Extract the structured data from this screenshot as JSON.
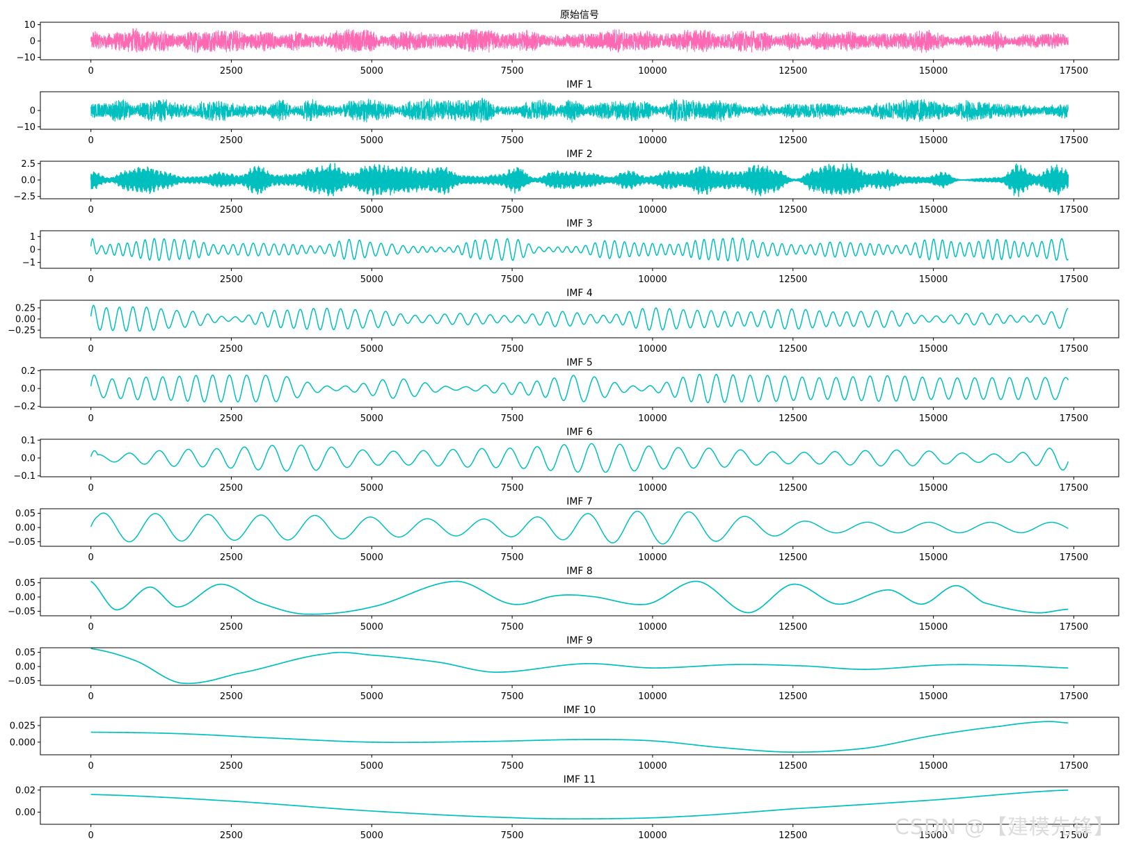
{
  "chart_data": [
    {
      "type": "line",
      "title": "原始信号",
      "color": "#ff69b4",
      "yticks": [
        "10",
        "0",
        "−10"
      ],
      "ylim": [
        -11.5,
        11.5
      ],
      "yvals": [
        10,
        0,
        -10
      ],
      "xlim": [
        -900,
        18300
      ],
      "xticks": [
        0,
        2500,
        5000,
        7500,
        10000,
        12500,
        15000,
        17500
      ],
      "signal": {
        "n": 17400,
        "kind": "noise",
        "amp": 6.6
      }
    },
    {
      "type": "line",
      "title": "IMF 1",
      "color": "#00bfbf",
      "yticks": [
        "0",
        "−10"
      ],
      "ylim": [
        -11.5,
        11.5
      ],
      "yvals": [
        0,
        -10
      ],
      "xlim": [
        -900,
        18300
      ],
      "xticks": [
        0,
        2500,
        5000,
        7500,
        10000,
        12500,
        15000,
        17500
      ],
      "signal": {
        "n": 17400,
        "kind": "noise",
        "amp": 6.4
      }
    },
    {
      "type": "line",
      "title": "IMF 2",
      "color": "#00bfbf",
      "yticks": [
        "2.5",
        "0.0",
        "−2.5"
      ],
      "ylim": [
        -2.85,
        2.85
      ],
      "yvals": [
        2.5,
        0,
        -2.5
      ],
      "xlim": [
        -900,
        18300
      ],
      "xticks": [
        0,
        2500,
        5000,
        7500,
        10000,
        12500,
        15000,
        17500
      ],
      "signal": {
        "n": 17400,
        "kind": "burst",
        "amp": 1.2
      }
    },
    {
      "type": "line",
      "title": "IMF 3",
      "color": "#00bfbf",
      "yticks": [
        "1",
        "0",
        "−1"
      ],
      "ylim": [
        -1.45,
        1.45
      ],
      "yvals": [
        1,
        0,
        -1
      ],
      "xlim": [
        -900,
        18300
      ],
      "xticks": [
        0,
        2500,
        5000,
        7500,
        10000,
        12500,
        15000,
        17500
      ],
      "signal": {
        "n": 17400,
        "kind": "osc",
        "period": 180,
        "amp": 0.45
      }
    },
    {
      "type": "line",
      "title": "IMF 4",
      "color": "#00bfbf",
      "yticks": [
        "0.25",
        "0.00",
        "−0.25"
      ],
      "ylim": [
        -0.42,
        0.42
      ],
      "yvals": [
        0.25,
        0,
        -0.25
      ],
      "xlim": [
        -900,
        18300
      ],
      "xticks": [
        0,
        2500,
        5000,
        7500,
        10000,
        12500,
        15000,
        17500
      ],
      "signal": {
        "n": 17400,
        "kind": "osc",
        "period": 260,
        "amp": 0.15
      }
    },
    {
      "type": "line",
      "title": "IMF 5",
      "color": "#00bfbf",
      "yticks": [
        "0.2",
        "0.0",
        "−0.2"
      ],
      "ylim": [
        -0.21,
        0.21
      ],
      "yvals": [
        0.2,
        0,
        -0.2
      ],
      "xlim": [
        -900,
        18300
      ],
      "xticks": [
        0,
        2500,
        5000,
        7500,
        10000,
        12500,
        15000,
        17500
      ],
      "signal": {
        "n": 17400,
        "kind": "osc",
        "period": 340,
        "amp": 0.09
      }
    },
    {
      "type": "line",
      "title": "IMF 6",
      "color": "#00bfbf",
      "yticks": [
        "0.1",
        "0.0",
        "−0.1"
      ],
      "ylim": [
        -0.105,
        0.105
      ],
      "yvals": [
        0.1,
        0,
        -0.1
      ],
      "xlim": [
        -900,
        18300
      ],
      "xticks": [
        0,
        2500,
        5000,
        7500,
        10000,
        12500,
        15000,
        17500
      ],
      "signal": {
        "n": 17400,
        "kind": "osc",
        "period": 560,
        "amp": 0.045
      }
    },
    {
      "type": "line",
      "title": "IMF 7",
      "color": "#00bfbf",
      "yticks": [
        "0.05",
        "0.00",
        "−0.05"
      ],
      "ylim": [
        -0.066,
        0.066
      ],
      "yvals": [
        0.05,
        0,
        -0.05
      ],
      "xlim": [
        -900,
        18300
      ],
      "xticks": [
        0,
        2500,
        5000,
        7500,
        10000,
        12500,
        15000,
        17500
      ],
      "signal": {
        "n": 17400,
        "kind": "osc",
        "period": 1050,
        "amp": 0.03
      }
    },
    {
      "type": "line",
      "title": "IMF 8",
      "color": "#00bfbf",
      "yticks": [
        "0.05",
        "0.00",
        "−0.05"
      ],
      "ylim": [
        -0.066,
        0.066
      ],
      "yvals": [
        0.05,
        0,
        -0.05
      ],
      "xlim": [
        -900,
        18300
      ],
      "xticks": [
        0,
        2500,
        5000,
        7500,
        10000,
        12500,
        15000,
        17500
      ],
      "points": [
        [
          0,
          0.055
        ],
        [
          450,
          -0.045
        ],
        [
          1050,
          0.035
        ],
        [
          1550,
          -0.035
        ],
        [
          2300,
          0.045
        ],
        [
          3000,
          -0.02
        ],
        [
          3800,
          -0.06
        ],
        [
          5000,
          -0.035
        ],
        [
          6500,
          0.055
        ],
        [
          7500,
          -0.025
        ],
        [
          8300,
          0.005
        ],
        [
          8900,
          0.002
        ],
        [
          9900,
          -0.025
        ],
        [
          10800,
          0.055
        ],
        [
          11700,
          -0.055
        ],
        [
          12500,
          0.045
        ],
        [
          13300,
          -0.025
        ],
        [
          14200,
          0.025
        ],
        [
          14800,
          -0.025
        ],
        [
          15400,
          0.04
        ],
        [
          15900,
          -0.02
        ],
        [
          16800,
          -0.055
        ],
        [
          17400,
          -0.043
        ]
      ]
    },
    {
      "type": "line",
      "title": "IMF 9",
      "color": "#00bfbf",
      "yticks": [
        "0.05",
        "0.00",
        "−0.05"
      ],
      "ylim": [
        -0.066,
        0.066
      ],
      "yvals": [
        0.05,
        0,
        -0.05
      ],
      "xlim": [
        -900,
        18300
      ],
      "xticks": [
        0,
        2500,
        5000,
        7500,
        10000,
        12500,
        15000,
        17500
      ],
      "points": [
        [
          0,
          0.063
        ],
        [
          800,
          0.02
        ],
        [
          1600,
          -0.058
        ],
        [
          2600,
          -0.025
        ],
        [
          4200,
          0.045
        ],
        [
          5000,
          0.04
        ],
        [
          6200,
          0.015
        ],
        [
          7200,
          -0.02
        ],
        [
          8800,
          0.01
        ],
        [
          10000,
          -0.005
        ],
        [
          11500,
          0.007
        ],
        [
          12700,
          0.002
        ],
        [
          13800,
          -0.01
        ],
        [
          15200,
          0.006
        ],
        [
          16500,
          0.003
        ],
        [
          17400,
          -0.005
        ]
      ]
    },
    {
      "type": "line",
      "title": "IMF 10",
      "color": "#00bfbf",
      "yticks": [
        "0.025",
        "0.000"
      ],
      "ylim": [
        -0.019,
        0.0375
      ],
      "yvals": [
        0.025,
        0
      ],
      "xlim": [
        -900,
        18300
      ],
      "xticks": [
        0,
        2500,
        5000,
        7500,
        10000,
        12500,
        15000,
        17500
      ],
      "points": [
        [
          0,
          0.015
        ],
        [
          1500,
          0.013
        ],
        [
          3000,
          0.007
        ],
        [
          5000,
          0.0
        ],
        [
          7000,
          0.001
        ],
        [
          8800,
          0.004
        ],
        [
          10000,
          0.002
        ],
        [
          11200,
          -0.008
        ],
        [
          12500,
          -0.015
        ],
        [
          13800,
          -0.009
        ],
        [
          15000,
          0.01
        ],
        [
          16200,
          0.024
        ],
        [
          17000,
          0.031
        ],
        [
          17400,
          0.029
        ]
      ]
    },
    {
      "type": "line",
      "title": "IMF 11",
      "color": "#00bfbf",
      "yticks": [
        "0.02",
        "0.00"
      ],
      "ylim": [
        -0.011,
        0.023
      ],
      "yvals": [
        0.02,
        0
      ],
      "xlim": [
        -900,
        18300
      ],
      "xticks": [
        0,
        2500,
        5000,
        7500,
        10000,
        12500,
        15000,
        17500
      ],
      "points": [
        [
          0,
          0.016
        ],
        [
          2500,
          0.01
        ],
        [
          5000,
          0.001
        ],
        [
          7500,
          -0.005
        ],
        [
          9000,
          -0.006
        ],
        [
          10500,
          -0.004
        ],
        [
          12500,
          0.003
        ],
        [
          15000,
          0.011
        ],
        [
          17400,
          0.02
        ]
      ]
    }
  ],
  "watermark": "CSDN @【建模先锋】"
}
